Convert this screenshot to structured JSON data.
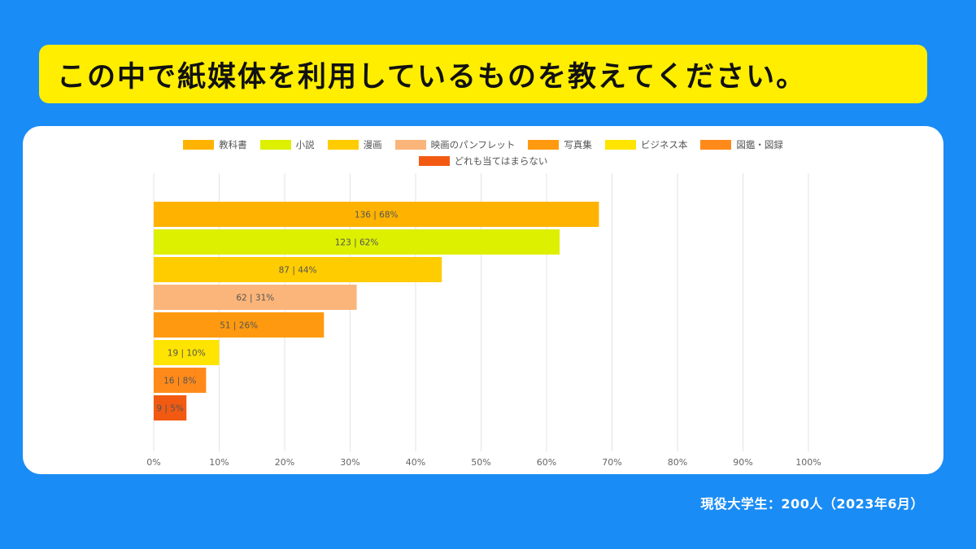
{
  "title": "この中で紙媒体を利用しているものを教えてください。",
  "footer": "現役大学生：200人（2023年6月）",
  "chart_data": {
    "type": "bar",
    "orientation": "horizontal",
    "series": [
      {
        "name": "教科書",
        "count": 136,
        "percent": 68,
        "label": "136 | 68%",
        "color": "#ffb300"
      },
      {
        "name": "小説",
        "count": 123,
        "percent": 62,
        "label": "123 | 62%",
        "color": "#dcf000"
      },
      {
        "name": "漫画",
        "count": 87,
        "percent": 44,
        "label": "87 | 44%",
        "color": "#ffcc00"
      },
      {
        "name": "映画のパンフレット",
        "count": 62,
        "percent": 31,
        "label": "62 | 31%",
        "color": "#fbb57a"
      },
      {
        "name": "写真集",
        "count": 51,
        "percent": 26,
        "label": "51 | 26%",
        "color": "#ff9a10"
      },
      {
        "name": "ビジネス本",
        "count": 19,
        "percent": 10,
        "label": "19 | 10%",
        "color": "#ffe400"
      },
      {
        "name": "図鑑・図録",
        "count": 16,
        "percent": 8,
        "label": "16 | 8%",
        "color": "#ff8a1a"
      },
      {
        "name": "どれも当てはまらない",
        "count": 9,
        "percent": 5,
        "label": "9 | 5%",
        "color": "#f25a12"
      }
    ],
    "xlim": [
      0,
      100
    ],
    "xticks": [
      "0%",
      "10%",
      "20%",
      "30%",
      "40%",
      "50%",
      "60%",
      "70%",
      "80%",
      "90%",
      "100%"
    ],
    "grid": true,
    "legend_position": "top"
  }
}
